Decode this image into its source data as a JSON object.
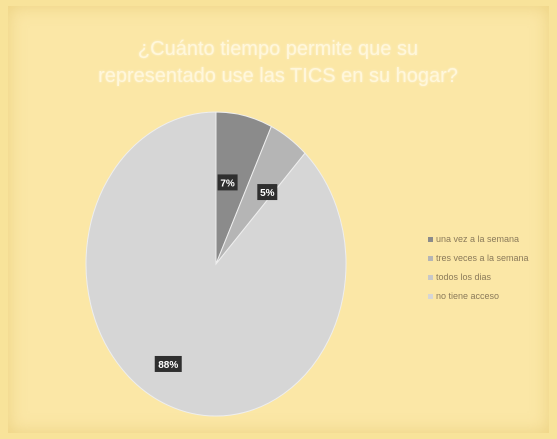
{
  "chart_data": {
    "type": "pie",
    "title_lines": [
      "¿Cuánto tiempo permite que su",
      "representado use las TICS en su hogar?"
    ],
    "categories": [
      "una vez a la semana",
      "tres veces a la semana",
      "todos los dias",
      "no tiene acceso"
    ],
    "values": [
      7,
      5,
      0,
      88
    ],
    "data_labels": [
      "7%",
      "5%",
      "",
      "88%"
    ],
    "colors": [
      "#8b8b8b",
      "#b5b5b5",
      "#c8c8c8",
      "#d6d6d6"
    ],
    "legend_position": "right",
    "label_text_color": "#ffffff",
    "label_bg_color": "#2f2f2f"
  }
}
